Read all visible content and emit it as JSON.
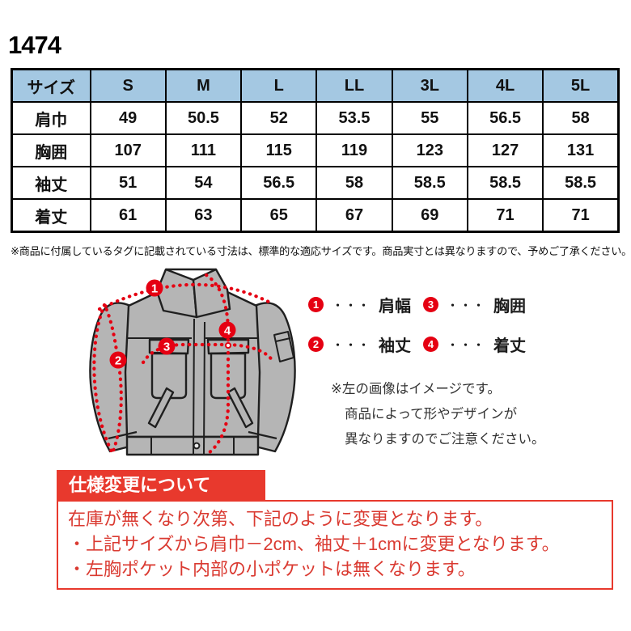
{
  "product_code": "1474",
  "size_table": {
    "header": [
      "サイズ",
      "S",
      "M",
      "L",
      "LL",
      "3L",
      "4L",
      "5L"
    ],
    "rows": [
      {
        "label": "肩巾",
        "values": [
          "49",
          "50.5",
          "52",
          "53.5",
          "55",
          "56.5",
          "58"
        ]
      },
      {
        "label": "胸囲",
        "values": [
          "107",
          "111",
          "115",
          "119",
          "123",
          "127",
          "131"
        ]
      },
      {
        "label": "袖丈",
        "values": [
          "51",
          "54",
          "56.5",
          "58",
          "58.5",
          "58.5",
          "58.5"
        ]
      },
      {
        "label": "着丈",
        "values": [
          "61",
          "63",
          "65",
          "67",
          "69",
          "71",
          "71"
        ]
      }
    ],
    "header_bg": "#a4c8e2"
  },
  "table_note": "※商品に付属しているタグに記載されている寸法は、標準的な適応サイズです。商品実寸とは異なりますので、予めご了承ください。",
  "diagram": {
    "marker_color": "#e50012",
    "jacket_fill": "#b5b5b5",
    "jacket_outline": "#1f1f1f",
    "markers": [
      {
        "num": "1",
        "label": "肩幅"
      },
      {
        "num": "2",
        "label": "袖丈"
      },
      {
        "num": "3",
        "label": "胸囲"
      },
      {
        "num": "4",
        "label": "着丈"
      }
    ],
    "note_lines": [
      "※左の画像はイメージです。",
      "商品によって形やデザインが",
      "異なりますのでご注意ください。"
    ]
  },
  "legend": {
    "dots": "・・・",
    "items": [
      {
        "num": "1",
        "label": "肩幅"
      },
      {
        "num": "3",
        "label": "胸囲"
      },
      {
        "num": "2",
        "label": "袖丈"
      },
      {
        "num": "4",
        "label": "着丈"
      }
    ]
  },
  "spec_change": {
    "title": "仕様変更について",
    "accent_color": "#e8392d",
    "text_color": "#da3a31",
    "lines": [
      "在庫が無くなり次第、下記のように変更となります。",
      "・上記サイズから肩巾－2cm、袖丈＋1cmに変更となります。",
      "・左胸ポケット内部の小ポケットは無くなります。"
    ]
  }
}
